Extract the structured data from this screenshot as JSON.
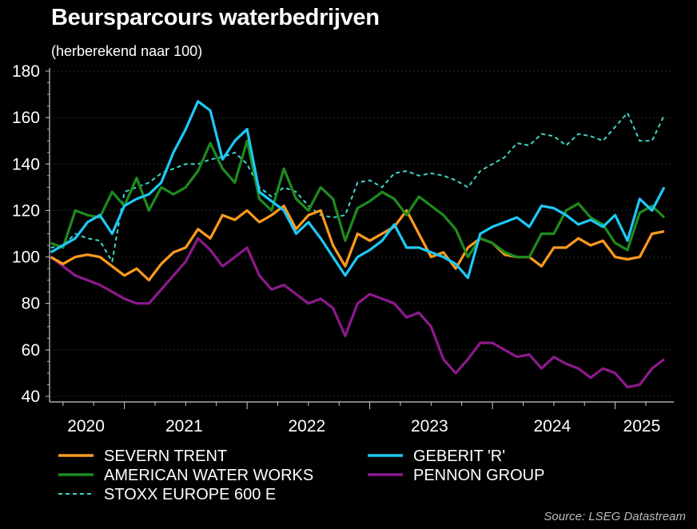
{
  "header": {
    "title": "Beursparcours waterbedrijven",
    "subtitle": "(herberekend naar 100)"
  },
  "source": "Source: LSEG Datastream",
  "chart_data": {
    "type": "line",
    "title": "Beursparcours waterbedrijven",
    "subtitle": "(herberekend naar 100)",
    "xlabel": "",
    "ylabel": "",
    "ylim": [
      40,
      180
    ],
    "xlim": [
      2020.39,
      2025.48
    ],
    "yticks": [
      40,
      60,
      80,
      100,
      120,
      140,
      160,
      180
    ],
    "xtick_labels": [
      {
        "label": "2020",
        "at": 2020.7
      },
      {
        "label": "2021",
        "at": 2021.5
      },
      {
        "label": "2022",
        "at": 2022.5
      },
      {
        "label": "2023",
        "at": 2023.5
      },
      {
        "label": "2024",
        "at": 2024.5
      },
      {
        "label": "2025",
        "at": 2025.23
      }
    ],
    "year_ticks": [
      2021,
      2022,
      2023,
      2024,
      2025
    ],
    "grid": true,
    "legend_position": "bottom",
    "x_start": 2020.4,
    "x_step": 0.1,
    "series": [
      {
        "name": "SEVERN TRENT",
        "color": "#ff9a1f",
        "dash": false,
        "values": [
          100,
          97,
          100,
          101,
          100,
          96,
          92,
          95,
          90,
          97,
          102,
          104,
          112,
          108,
          118,
          116,
          120,
          115,
          118,
          122,
          112,
          118,
          120,
          105,
          96,
          110,
          107,
          110,
          113,
          120,
          110,
          100,
          102,
          95,
          104,
          108,
          106,
          101,
          100,
          100,
          96,
          104,
          104,
          108,
          105,
          107,
          100,
          99,
          100,
          110,
          111
        ]
      },
      {
        "name": "GEBERIT 'R'",
        "color": "#1ec8f5",
        "dash": false,
        "values": [
          102,
          105,
          108,
          115,
          118,
          110,
          122,
          125,
          127,
          132,
          145,
          155,
          167,
          163,
          142,
          150,
          155,
          128,
          124,
          120,
          110,
          115,
          108,
          100,
          92,
          100,
          103,
          107,
          114,
          104,
          104,
          102,
          100,
          97,
          91,
          110,
          113,
          115,
          117,
          113,
          122,
          121,
          118,
          114,
          116,
          113,
          118,
          107,
          125,
          120,
          130
        ]
      },
      {
        "name": "AMERICAN WATER WORKS",
        "color": "#1f8a1f",
        "dash": false,
        "values": [
          106,
          104,
          120,
          118,
          117,
          128,
          122,
          134,
          120,
          130,
          127,
          130,
          137,
          149,
          138,
          132,
          150,
          125,
          120,
          138,
          125,
          120,
          130,
          125,
          107,
          121,
          124,
          128,
          125,
          118,
          126,
          122,
          118,
          112,
          100,
          108,
          106,
          102,
          100,
          100,
          110,
          110,
          120,
          123,
          117,
          114,
          106,
          103,
          119,
          122,
          117
        ]
      },
      {
        "name": "PENNON GROUP",
        "color": "#8c1a8c",
        "dash": false,
        "values": [
          100,
          96,
          92,
          90,
          88,
          85,
          82,
          80,
          80,
          86,
          92,
          98,
          108,
          103,
          96,
          100,
          104,
          92,
          86,
          88,
          84,
          80,
          82,
          78,
          66,
          80,
          84,
          82,
          80,
          74,
          76,
          70,
          56,
          50,
          56,
          63,
          63,
          60,
          57,
          58,
          52,
          57,
          54,
          52,
          48,
          52,
          50,
          44,
          45,
          52,
          56
        ]
      },
      {
        "name": "STOXX EUROPE 600 E",
        "color": "#3ed6c8",
        "dash": true,
        "values": [
          104,
          105,
          110,
          108,
          107,
          98,
          128,
          130,
          132,
          136,
          138,
          140,
          140,
          142,
          143,
          145,
          140,
          130,
          126,
          130,
          128,
          122,
          118,
          117,
          118,
          132,
          133,
          130,
          136,
          137,
          135,
          136,
          135,
          133,
          130,
          137,
          140,
          143,
          149,
          148,
          153,
          152,
          148,
          153,
          152,
          150,
          156,
          162,
          150,
          150,
          161
        ]
      }
    ]
  }
}
